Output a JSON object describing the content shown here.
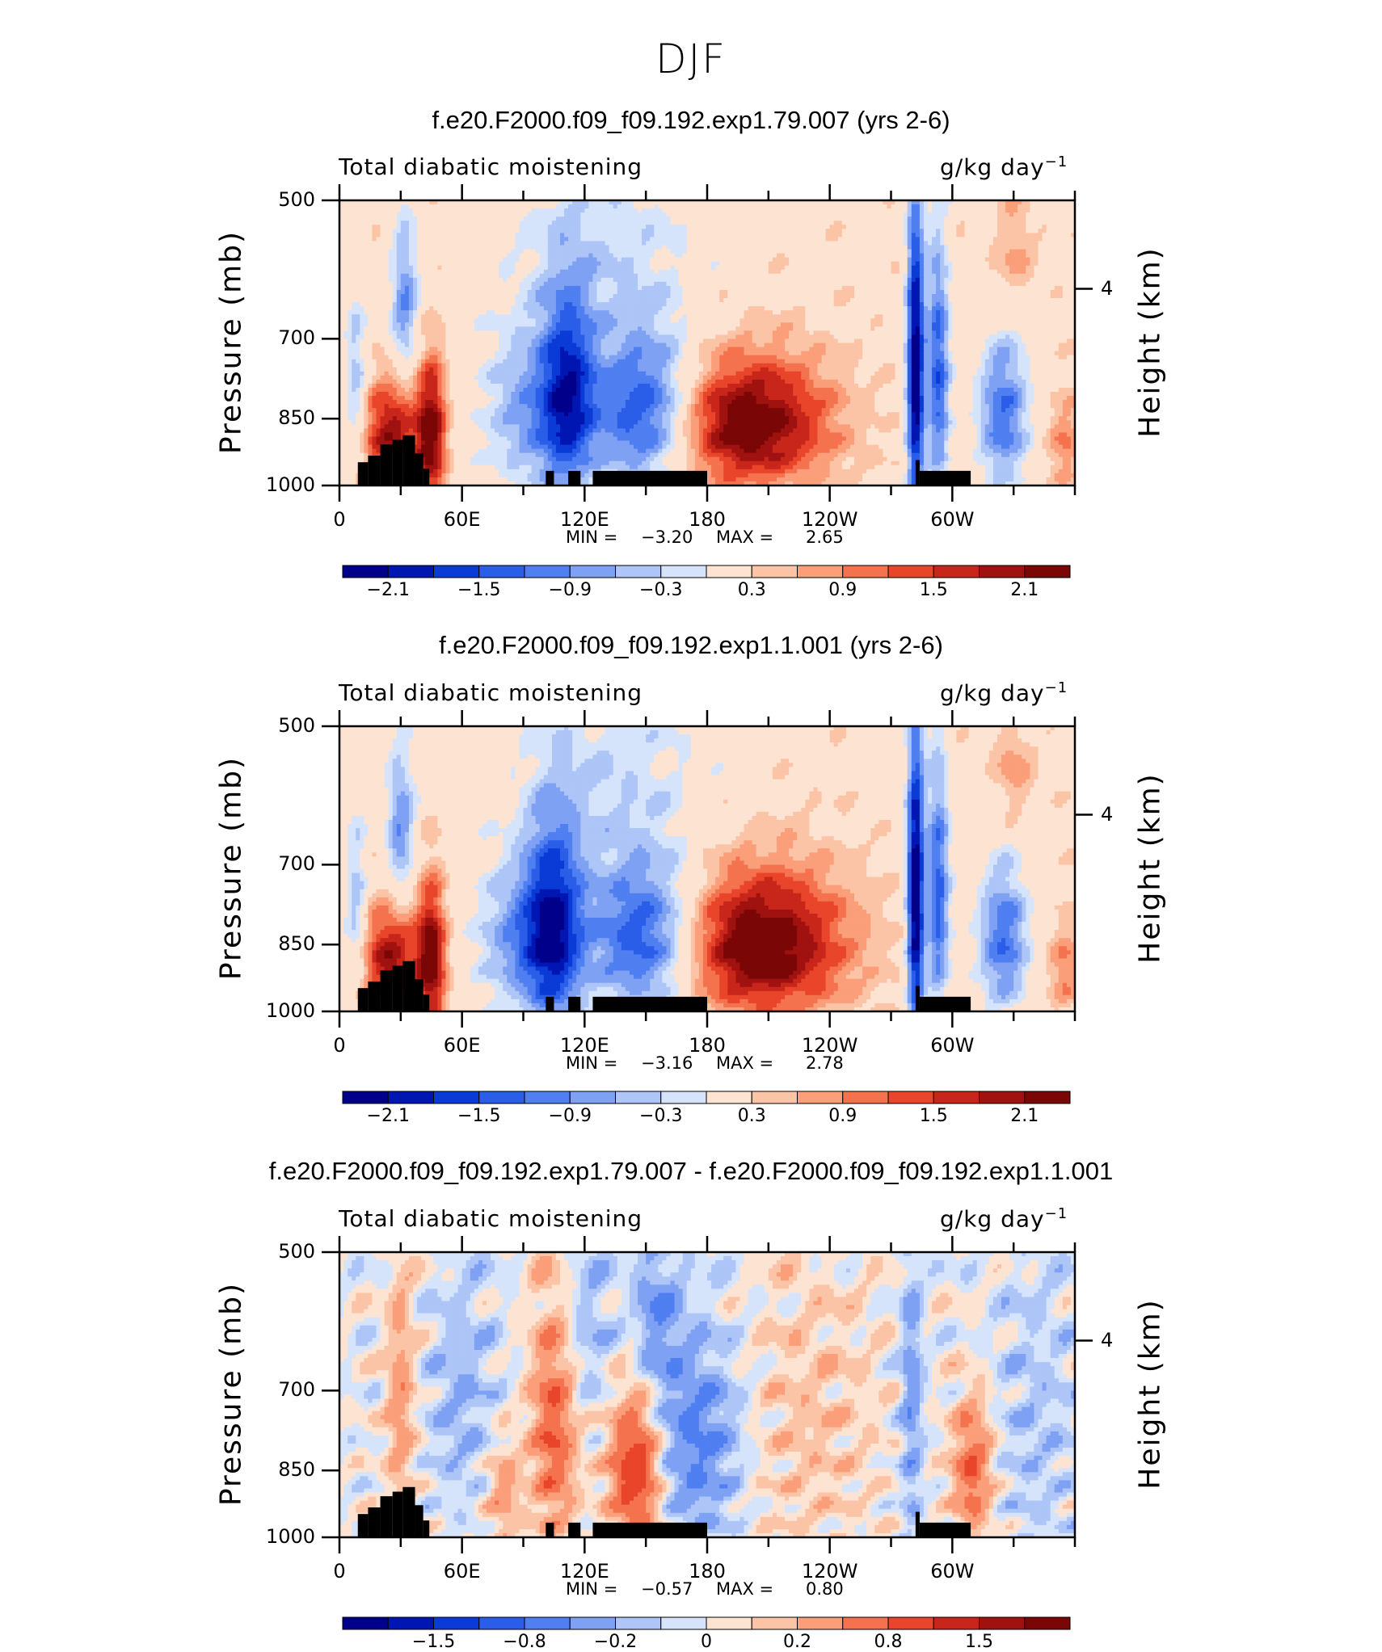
{
  "figure_title": "DJF",
  "chart_data": [
    {
      "type": "heatmap",
      "title": "f.e20.F2000.f09_f09.192.exp1.79.007 (yrs 2-6)",
      "left_label": "Total diabatic moistening",
      "units": "g/kg day",
      "units_exp": "−1",
      "ylabel": "Pressure (mb)",
      "y2label": "Height (km)",
      "y_ticks": [
        "500",
        "700",
        "850",
        "1000"
      ],
      "y2_ticks": [
        "4"
      ],
      "x_ticks": [
        "0",
        "60E",
        "120E",
        "180",
        "120W",
        "60W"
      ],
      "xlim": [
        0,
        360
      ],
      "ylim": [
        1000,
        500
      ],
      "min_text": "MIN =",
      "min_value": "−3.20",
      "max_text": "MAX =",
      "max_value": "2.65",
      "colorbar_labels": [
        "−2.1",
        "−1.5",
        "−0.9",
        "−0.3",
        "0.3",
        "0.9",
        "1.5",
        "2.1"
      ],
      "features": [
        {
          "lon": 200,
          "p": 860,
          "v": 2.4,
          "wl": 28,
          "wp": 95
        },
        {
          "lon": 150,
          "p": 840,
          "v": -2.1,
          "wl": 18,
          "wp": 110
        },
        {
          "lon": 112,
          "p": 800,
          "v": -1.7,
          "wl": 9,
          "wp": 140
        },
        {
          "lon": 95,
          "p": 840,
          "v": -1.2,
          "wl": 18,
          "wp": 120
        },
        {
          "lon": 32,
          "p": 640,
          "v": -1.3,
          "wl": 5,
          "wp": 90
        },
        {
          "lon": 45,
          "p": 880,
          "v": 2.2,
          "wl": 5,
          "wp": 110
        },
        {
          "lon": 25,
          "p": 880,
          "v": 1.9,
          "wl": 10,
          "wp": 80
        },
        {
          "lon": 282,
          "p": 760,
          "v": -2.9,
          "wl": 3,
          "wp": 210
        },
        {
          "lon": 293,
          "p": 760,
          "v": -1.8,
          "wl": 4,
          "wp": 170
        },
        {
          "lon": 325,
          "p": 840,
          "v": -1.6,
          "wl": 9,
          "wp": 110
        },
        {
          "lon": 8,
          "p": 780,
          "v": -1.0,
          "wl": 4,
          "wp": 120
        },
        {
          "lon": 130,
          "p": 560,
          "v": -0.6,
          "wl": 35,
          "wp": 120
        },
        {
          "lon": 330,
          "p": 560,
          "v": 0.6,
          "wl": 7,
          "wp": 60
        },
        {
          "lon": 355,
          "p": 900,
          "v": 0.8,
          "wl": 6,
          "wp": 70
        }
      ]
    },
    {
      "type": "heatmap",
      "title": "f.e20.F2000.f09_f09.192.exp1.1.001 (yrs 2-6)",
      "left_label": "Total diabatic moistening",
      "units": "g/kg day",
      "units_exp": "−1",
      "ylabel": "Pressure (mb)",
      "y2label": "Height (km)",
      "y_ticks": [
        "500",
        "700",
        "850",
        "1000"
      ],
      "y2_ticks": [
        "4"
      ],
      "x_ticks": [
        "0",
        "60E",
        "120E",
        "180",
        "120W",
        "60W"
      ],
      "xlim": [
        0,
        360
      ],
      "ylim": [
        1000,
        500
      ],
      "min_text": "MIN =",
      "min_value": "−3.16",
      "max_text": "MAX =",
      "max_value": "2.78",
      "colorbar_labels": [
        "−2.1",
        "−1.5",
        "−0.9",
        "−0.3",
        "0.3",
        "0.9",
        "1.5",
        "2.1"
      ],
      "features": [
        {
          "lon": 205,
          "p": 850,
          "v": 2.5,
          "wl": 30,
          "wp": 105
        },
        {
          "lon": 150,
          "p": 840,
          "v": -2.1,
          "wl": 20,
          "wp": 110
        },
        {
          "lon": 105,
          "p": 820,
          "v": -2.0,
          "wl": 10,
          "wp": 150
        },
        {
          "lon": 88,
          "p": 840,
          "v": -1.2,
          "wl": 16,
          "wp": 110
        },
        {
          "lon": 30,
          "p": 640,
          "v": -1.3,
          "wl": 5,
          "wp": 90
        },
        {
          "lon": 45,
          "p": 880,
          "v": 2.2,
          "wl": 5,
          "wp": 110
        },
        {
          "lon": 25,
          "p": 880,
          "v": 1.9,
          "wl": 10,
          "wp": 80
        },
        {
          "lon": 282,
          "p": 760,
          "v": -2.9,
          "wl": 3,
          "wp": 210
        },
        {
          "lon": 293,
          "p": 760,
          "v": -1.8,
          "wl": 4,
          "wp": 170
        },
        {
          "lon": 325,
          "p": 840,
          "v": -1.6,
          "wl": 9,
          "wp": 110
        },
        {
          "lon": 8,
          "p": 780,
          "v": -1.0,
          "wl": 4,
          "wp": 120
        },
        {
          "lon": 135,
          "p": 560,
          "v": -0.6,
          "wl": 35,
          "wp": 120
        },
        {
          "lon": 330,
          "p": 560,
          "v": 0.6,
          "wl": 7,
          "wp": 60
        },
        {
          "lon": 355,
          "p": 900,
          "v": 0.8,
          "wl": 6,
          "wp": 70
        }
      ]
    },
    {
      "type": "heatmap",
      "title": "f.e20.F2000.f09_f09.192.exp1.79.007 - f.e20.F2000.f09_f09.192.exp1.1.001",
      "left_label": "Total diabatic moistening",
      "units": "g/kg day",
      "units_exp": "−1",
      "ylabel": "Pressure (mb)",
      "y2label": "Height (km)",
      "y_ticks": [
        "500",
        "700",
        "850",
        "1000"
      ],
      "y2_ticks": [
        "4"
      ],
      "x_ticks": [
        "0",
        "60E",
        "120E",
        "180",
        "120W",
        "60W"
      ],
      "xlim": [
        0,
        360
      ],
      "ylim": [
        1000,
        500
      ],
      "min_text": "MIN =",
      "min_value": "−0.57",
      "max_text": "MAX =",
      "max_value": "0.80",
      "colorbar_labels": [
        "−1.5",
        "−0.8",
        "−0.2",
        "0",
        "0.2",
        "0.8",
        "1.5"
      ],
      "features": [
        {
          "lon": 145,
          "p": 850,
          "v": 0.7,
          "wl": 9,
          "wp": 110
        },
        {
          "lon": 105,
          "p": 760,
          "v": 0.5,
          "wl": 8,
          "wp": 160
        },
        {
          "lon": 175,
          "p": 800,
          "v": -0.4,
          "wl": 16,
          "wp": 140
        },
        {
          "lon": 155,
          "p": 580,
          "v": -0.3,
          "wl": 8,
          "wp": 90
        },
        {
          "lon": 30,
          "p": 720,
          "v": 0.3,
          "wl": 5,
          "wp": 160
        },
        {
          "lon": 280,
          "p": 720,
          "v": -0.3,
          "wl": 4,
          "wp": 200
        },
        {
          "lon": 310,
          "p": 850,
          "v": 0.5,
          "wl": 7,
          "wp": 100
        },
        {
          "lon": 60,
          "p": 720,
          "v": -0.2,
          "wl": 12,
          "wp": 150
        },
        {
          "lon": 230,
          "p": 760,
          "v": 0.15,
          "wl": 25,
          "wp": 200
        },
        {
          "lon": 340,
          "p": 760,
          "v": -0.15,
          "wl": 15,
          "wp": 200
        },
        {
          "lon": 120,
          "p": 600,
          "v": -0.2,
          "wl": 10,
          "wp": 100
        },
        {
          "lon": 80,
          "p": 900,
          "v": 0.3,
          "wl": 6,
          "wp": 80
        }
      ]
    }
  ],
  "colormap": [
    "#00008a",
    "#0016b3",
    "#0b3bd6",
    "#2a5de8",
    "#4f7ff0",
    "#7fa1f3",
    "#adc5f7",
    "#d6e4fb",
    "#fde4d2",
    "#fcc4a6",
    "#fa9f7a",
    "#f5724f",
    "#e8452a",
    "#c8261a",
    "#a01210",
    "#7a0606"
  ]
}
